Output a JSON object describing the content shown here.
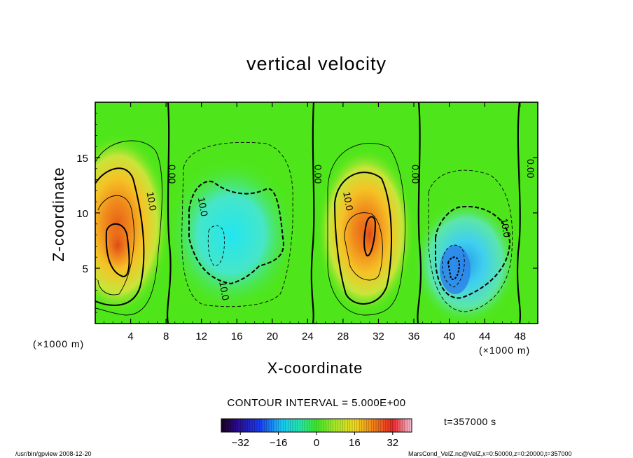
{
  "chart_data": {
    "type": "heatmap",
    "title": "vertical velocity",
    "xlabel": "X-coordinate",
    "ylabel": "Z-coordinate",
    "x_unit_left": "(×1000 m)",
    "x_unit_right": "(×1000 m)",
    "xlim": [
      0,
      50
    ],
    "ylim": [
      0,
      20
    ],
    "x_ticks": [
      4,
      8,
      12,
      16,
      20,
      24,
      28,
      32,
      36,
      40,
      44,
      48
    ],
    "x_tick_labels": [
      "4",
      "8",
      "12",
      "16",
      "20",
      "24",
      "28",
      "32",
      "36",
      "40",
      "44",
      "48"
    ],
    "y_ticks": [
      5,
      10,
      15
    ],
    "y_tick_labels": [
      "5",
      "10",
      "15"
    ],
    "contour_interval": "CONTOUR INTERVAL = 5.000E+00",
    "contour_labels": [
      {
        "text": "0.00",
        "x": 8.3,
        "z": 13.5
      },
      {
        "text": "0.00",
        "x": 24.8,
        "z": 13.5
      },
      {
        "text": "0.00",
        "x": 35.8,
        "z": 13.5
      },
      {
        "text": "0.00",
        "x": 48.8,
        "z": 14.0
      },
      {
        "text": "10.0",
        "x": 6.0,
        "z": 11.0
      },
      {
        "text": "10.0",
        "x": 11.8,
        "z": 10.5
      },
      {
        "text": "10.0",
        "x": 28.2,
        "z": 11.0
      },
      {
        "text": "10.0",
        "x": 14.2,
        "z": 2.9
      },
      {
        "text": "10.0",
        "x": 46.0,
        "z": 8.6
      }
    ],
    "updraft_cells": [
      {
        "x_center": 2.5,
        "z_center": 7.5,
        "peak": 30
      },
      {
        "x_center": 30.5,
        "z_center": 8.0,
        "peak": 28
      }
    ],
    "downdraft_cells": [
      {
        "x_center": 15.5,
        "z_center": 7.5,
        "peak": -16
      },
      {
        "x_center": 40.5,
        "z_center": 5.0,
        "peak": -22
      }
    ],
    "colorbar": {
      "min": -40,
      "max": 40,
      "tick_values": [
        -32,
        -16,
        0,
        16,
        32
      ],
      "tick_labels": [
        "−32",
        "−16",
        "0",
        "16",
        "32"
      ]
    },
    "time_label": "t=357000 s"
  },
  "footer": {
    "left": "/usr/bin/gpview   2008-12-20",
    "right": "MarsCond_VelZ.nc@VelZ,x=0:50000,z=0:20000,t=357000"
  }
}
